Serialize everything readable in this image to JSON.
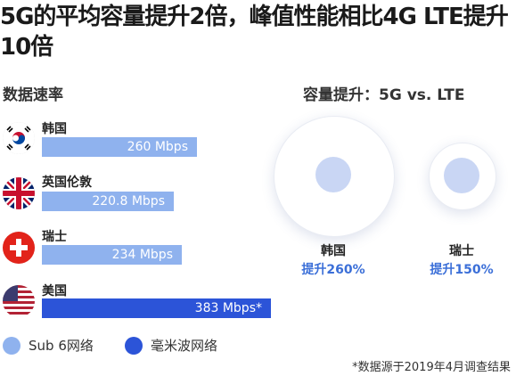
{
  "title": "5G的平均容量提升2倍，峰值性能相比4G LTE提升10倍",
  "speed_section_title": "数据速率",
  "capacity_section_title": "容量提升：5G vs. LTE",
  "colors": {
    "sub6": "#8fb2ee",
    "mmwave": "#2c54d8",
    "value_text": "#3b6fd8"
  },
  "chart_data": [
    {
      "type": "bar",
      "orientation": "horizontal",
      "title": "数据速率",
      "categories": [
        "韩国",
        "英国伦敦",
        "瑞士",
        "美国"
      ],
      "values": [
        260,
        220.8,
        234,
        383
      ],
      "unit": "Mbps",
      "value_labels": [
        "260 Mbps",
        "220.8 Mbps",
        "234 Mbps",
        "383 Mbps*"
      ],
      "network": [
        "Sub 6网络",
        "Sub 6网络",
        "Sub 6网络",
        "毫米波网络"
      ],
      "flag_icons": [
        "south-korea-flag-icon",
        "uk-flag-icon",
        "switzerland-flag-icon",
        "usa-flag-icon"
      ],
      "legend": [
        "Sub 6网络",
        "毫米波网络"
      ]
    },
    {
      "type": "bubble",
      "title": "容量提升：5G vs. LTE",
      "categories": [
        "韩国",
        "瑞士"
      ],
      "values": [
        260,
        150
      ],
      "unit": "%",
      "value_labels": [
        "提升260%",
        "提升150%"
      ]
    }
  ],
  "footnote": "*数据源于2019年4月调查结果"
}
